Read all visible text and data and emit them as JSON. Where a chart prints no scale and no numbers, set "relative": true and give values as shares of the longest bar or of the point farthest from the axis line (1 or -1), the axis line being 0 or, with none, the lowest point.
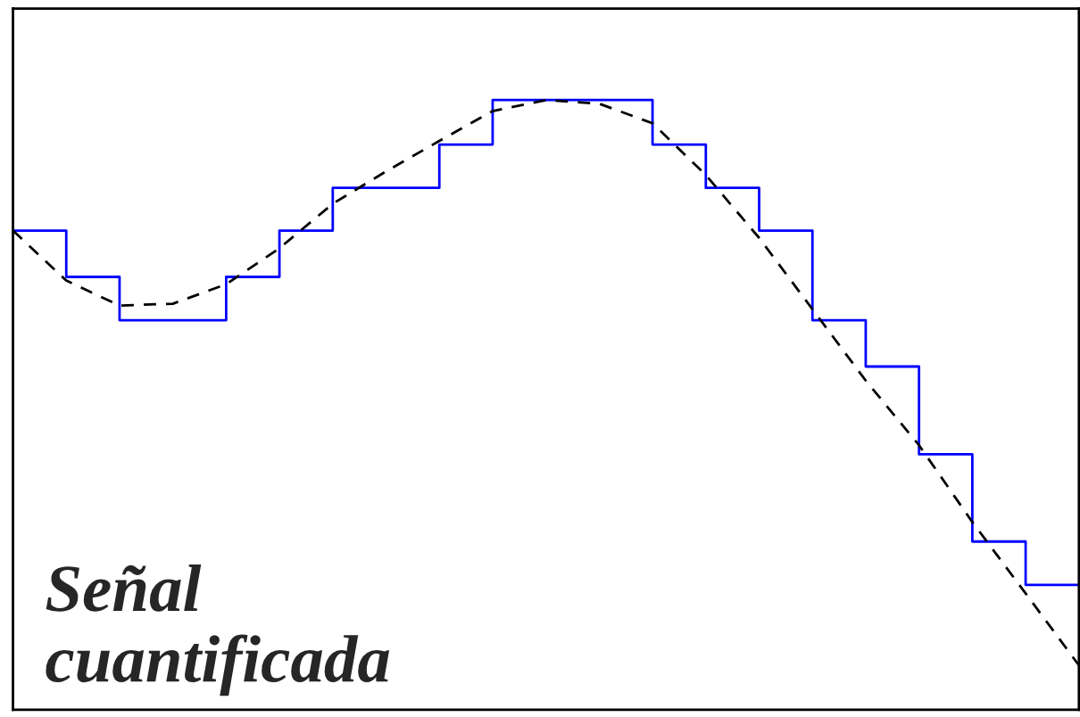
{
  "chart_data": {
    "type": "line",
    "relative": true,
    "categories": [
      null,
      null,
      null,
      null,
      null,
      null,
      null,
      null,
      null,
      null,
      null,
      null,
      null,
      null,
      null,
      null,
      null,
      null,
      null,
      null,
      null
    ],
    "series": [
      {
        "type": "step",
        "color": "#0000ff",
        "line_style": "solid",
        "values": [
          0.786,
          0.71,
          0.639,
          0.639,
          0.71,
          0.786,
          0.856,
          0.856,
          0.927,
          1,
          1,
          1,
          0.927,
          0.856,
          0.786,
          0.639,
          0.563,
          0.419,
          0.276,
          0.205,
          0.205
        ]
      },
      {
        "color": "#000000",
        "line_style": "dashed",
        "values": [
          0.786,
          0.704,
          0.663,
          0.666,
          0.698,
          0.757,
          0.83,
          0.883,
          0.933,
          0.982,
          1.0,
          0.994,
          0.962,
          0.877,
          0.774,
          0.657,
          0.54,
          0.434,
          0.308,
          0.191,
          0.073
        ]
      }
    ],
    "annotations": [
      "Señal\ncuantificada"
    ],
    "grid": false,
    "legend": false,
    "marker": "none"
  }
}
